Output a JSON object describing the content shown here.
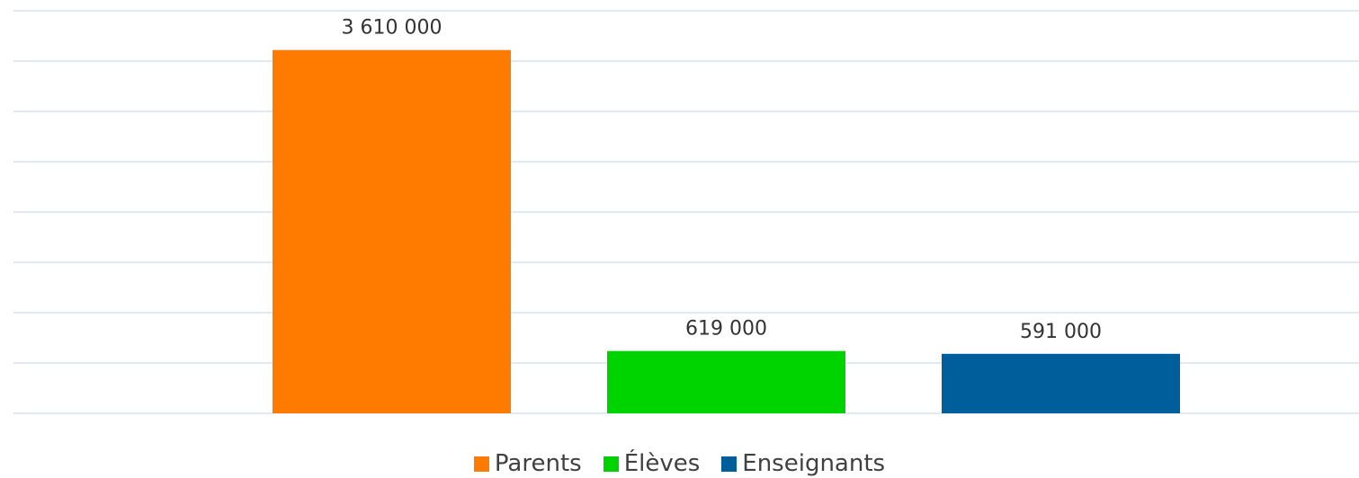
{
  "chart_data": {
    "type": "bar",
    "categories": [
      "Parents",
      "Élèves",
      "Enseignants"
    ],
    "values": [
      3610000,
      619000,
      591000
    ],
    "data_labels": [
      "3 610 000",
      "619 000",
      "591 000"
    ],
    "colors": [
      "#ff7b00",
      "#00d400",
      "#005e9a"
    ],
    "title": "",
    "xlabel": "",
    "ylabel": "",
    "ylim": [
      0,
      4000000
    ],
    "y_gridline_step": 500000,
    "grid": true,
    "legend": {
      "position": "bottom",
      "entries": [
        "Parents",
        "Élèves",
        "Enseignants"
      ]
    }
  }
}
